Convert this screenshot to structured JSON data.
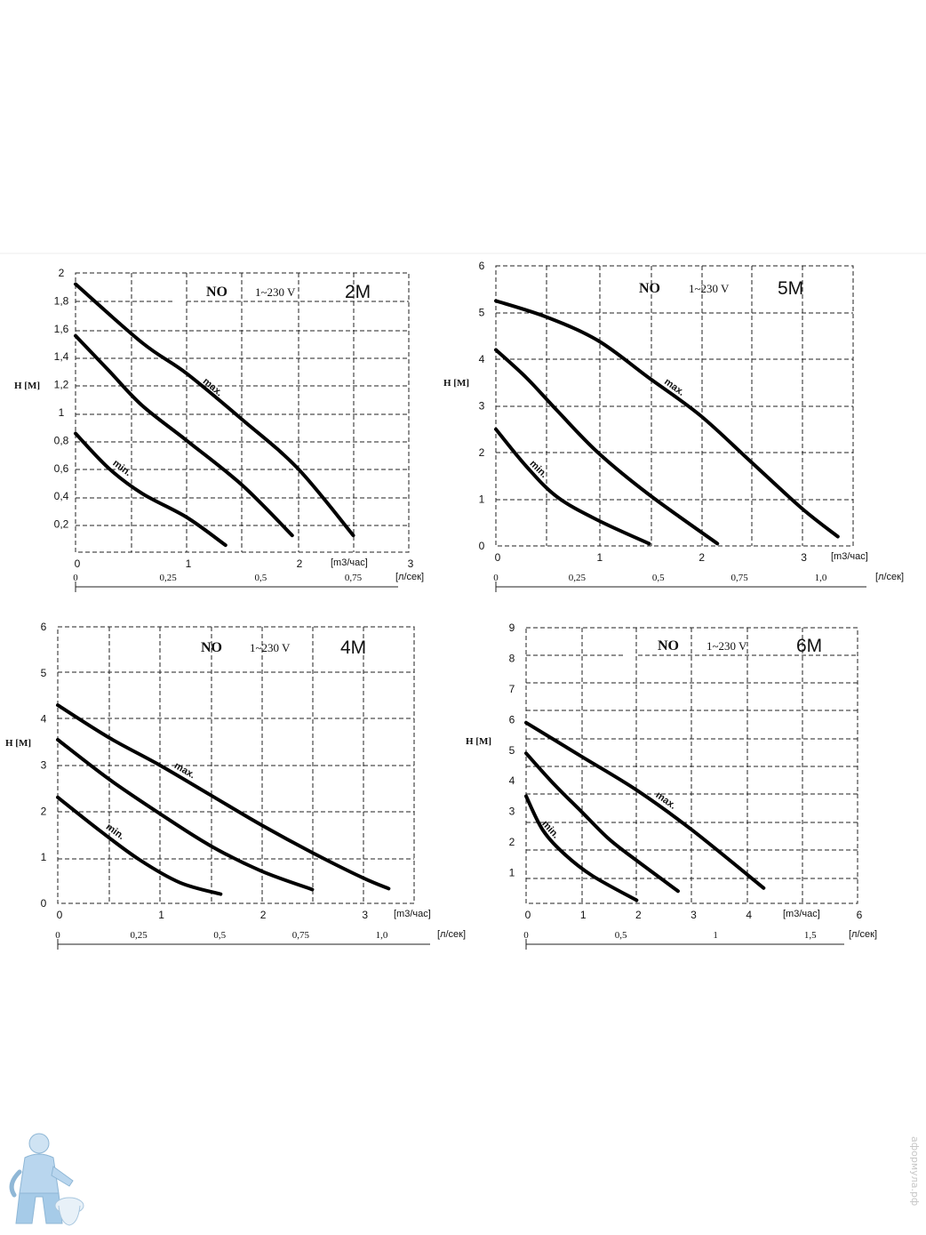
{
  "chart_data": [
    {
      "type": "line",
      "title": "2M",
      "header": {
        "type_label": "NO",
        "voltage": "1~230 V"
      },
      "ylabel": "H [M]",
      "xlabel": "[m3/час]",
      "xlabel2": "[л/сек]",
      "xlim": [
        0,
        3
      ],
      "ylim": [
        0,
        2
      ],
      "grid": true,
      "yticks": [
        "0,2",
        "0,4",
        "0,6",
        "0,8",
        "1",
        "1,2",
        "1,4",
        "1,6",
        "1,8",
        "2"
      ],
      "ytick_values": [
        0.2,
        0.4,
        0.6,
        0.8,
        1.0,
        1.2,
        1.4,
        1.6,
        1.8,
        2.0
      ],
      "xticks": [
        "0",
        "1",
        "2",
        "3"
      ],
      "xtick_values": [
        0,
        1,
        2,
        3
      ],
      "xticks2": [
        "0",
        "0,25",
        "0,5",
        "0,75"
      ],
      "xticks2_values": [
        0,
        0.25,
        0.5,
        0.75
      ],
      "curve_labels": {
        "max": "max.",
        "min": "min."
      },
      "series": [
        {
          "name": "max.",
          "x": [
            0,
            0.6,
            1.0,
            1.5,
            2.0,
            2.5
          ],
          "y": [
            1.92,
            1.5,
            1.28,
            0.95,
            0.6,
            0.12
          ]
        },
        {
          "x": [
            0,
            0.3,
            0.6,
            1.0,
            1.5,
            1.95
          ],
          "y": [
            1.55,
            1.3,
            1.05,
            0.8,
            0.48,
            0.12
          ]
        },
        {
          "name": "min.",
          "x": [
            0,
            0.3,
            0.6,
            1.0,
            1.35
          ],
          "y": [
            0.85,
            0.6,
            0.42,
            0.25,
            0.05
          ]
        }
      ]
    },
    {
      "type": "line",
      "title": "5M",
      "header": {
        "type_label": "NO",
        "voltage": "1~230 V"
      },
      "ylabel": "H [M]",
      "xlabel": "[m3/час]",
      "xlabel2": "[л/сек]",
      "xlim": [
        0,
        3.5
      ],
      "ylim": [
        0,
        6
      ],
      "grid": true,
      "yticks": [
        "0",
        "1",
        "2",
        "3",
        "4",
        "5",
        "6"
      ],
      "ytick_values": [
        0,
        1,
        2,
        3,
        4,
        5,
        6
      ],
      "xticks": [
        "0",
        "1",
        "2",
        "3"
      ],
      "xtick_values": [
        0,
        1,
        2,
        3
      ],
      "xticks2": [
        "0",
        "0,25",
        "0,5",
        "0,75",
        "1,0"
      ],
      "xticks2_values": [
        0,
        0.25,
        0.5,
        0.75,
        1.0
      ],
      "curve_labels": {
        "max": "max.",
        "min": "min."
      },
      "series": [
        {
          "name": "max.",
          "x": [
            0,
            0.5,
            1.0,
            1.5,
            2.0,
            2.5,
            3.0,
            3.35
          ],
          "y": [
            5.25,
            4.9,
            4.4,
            3.6,
            2.8,
            1.8,
            0.8,
            0.2
          ]
        },
        {
          "x": [
            0,
            0.3,
            0.6,
            1.0,
            1.5,
            2.17
          ],
          "y": [
            4.2,
            3.6,
            2.9,
            2.0,
            1.1,
            0.05
          ]
        },
        {
          "name": "min.",
          "x": [
            0,
            0.3,
            0.6,
            1.0,
            1.5
          ],
          "y": [
            2.5,
            1.7,
            1.05,
            0.55,
            0.05
          ]
        }
      ]
    },
    {
      "type": "line",
      "title": "4M",
      "header": {
        "type_label": "NO",
        "voltage": "1~230 V"
      },
      "ylabel": "H [M]",
      "xlabel": "[m3/час]",
      "xlabel2": "[л/сек]",
      "xlim": [
        0,
        3.5
      ],
      "ylim": [
        0,
        6
      ],
      "grid": true,
      "yticks": [
        "0",
        "1",
        "2",
        "3",
        "4",
        "5",
        "6"
      ],
      "ytick_values": [
        0,
        1,
        2,
        3,
        4,
        5,
        6
      ],
      "xticks": [
        "0",
        "1",
        "2",
        "3"
      ],
      "xtick_values": [
        0,
        1,
        2,
        3
      ],
      "xticks2": [
        "0",
        "0,25",
        "0,5",
        "0,75",
        "1,0"
      ],
      "xticks2_values": [
        0,
        0.25,
        0.5,
        0.75,
        1.0
      ],
      "curve_labels": {
        "max": "max.",
        "min": "min."
      },
      "series": [
        {
          "name": "max.",
          "x": [
            0,
            0.5,
            1.0,
            1.5,
            2.0,
            2.5,
            3.0,
            3.25
          ],
          "y": [
            4.3,
            3.6,
            3.0,
            2.35,
            1.7,
            1.1,
            0.55,
            0.32
          ]
        },
        {
          "x": [
            0,
            0.5,
            1.0,
            1.5,
            2.0,
            2.5
          ],
          "y": [
            3.55,
            2.7,
            1.95,
            1.25,
            0.7,
            0.3
          ]
        },
        {
          "name": "min.",
          "x": [
            0,
            0.4,
            0.8,
            1.2,
            1.6
          ],
          "y": [
            2.3,
            1.6,
            0.95,
            0.45,
            0.2
          ]
        }
      ]
    },
    {
      "type": "line",
      "title": "6M",
      "header": {
        "type_label": "NO",
        "voltage": "1~230 V"
      },
      "ylabel": "H [M]",
      "xlabel": "[m3/час]",
      "xlabel2": "[л/сек]",
      "xlim": [
        0,
        6
      ],
      "ylim": [
        0,
        9
      ],
      "grid": true,
      "yticks": [
        "1",
        "2",
        "3",
        "4",
        "5",
        "6",
        "7",
        "8",
        "9"
      ],
      "ytick_values": [
        1,
        2,
        3,
        4,
        5,
        6,
        7,
        8,
        9
      ],
      "xticks": [
        "0",
        "1",
        "2",
        "3",
        "4",
        "6"
      ],
      "xtick_values": [
        0,
        1,
        2,
        3,
        4,
        6
      ],
      "xticks2": [
        "0",
        "0,5",
        "1",
        "1,5"
      ],
      "xticks2_values": [
        0,
        0.5,
        1,
        1.5
      ],
      "curve_labels": {
        "max": "max.",
        "min": "min."
      },
      "series": [
        {
          "name": "max.",
          "x": [
            0,
            1.0,
            2.0,
            3.0,
            4.3
          ],
          "y": [
            5.9,
            4.8,
            3.7,
            2.4,
            0.5
          ]
        },
        {
          "x": [
            0,
            0.5,
            1.0,
            1.5,
            2.0,
            2.75
          ],
          "y": [
            4.9,
            3.9,
            3.0,
            2.1,
            1.4,
            0.4
          ]
        },
        {
          "name": "min.",
          "x": [
            0,
            0.3,
            0.7,
            1.2,
            2.0
          ],
          "y": [
            3.5,
            2.4,
            1.6,
            0.9,
            0.1
          ]
        }
      ]
    }
  ],
  "watermark": "аформула.рф"
}
